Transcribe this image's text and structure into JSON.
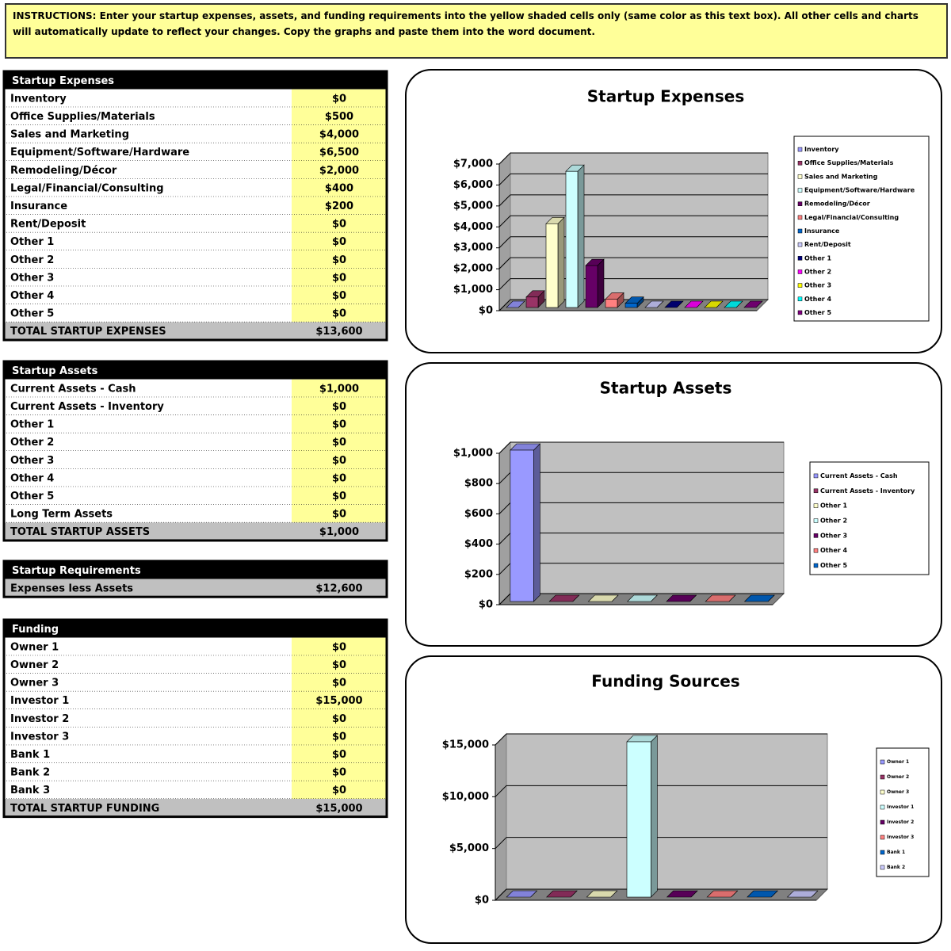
{
  "instructions": "INSTRUCTIONS: Enter your startup expenses, assets, and funding requirements into the yellow shaded cells only (same color as this text box). All other cells and charts will automatically update to reflect your changes. Copy the graphs and paste them into the word document.",
  "tables": [
    {
      "title": "Startup Expenses",
      "rows": [
        [
          "Inventory",
          "$0"
        ],
        [
          "Office Supplies/Materials",
          "$500"
        ],
        [
          "Sales and Marketing",
          "$4,000"
        ],
        [
          "Equipment/Software/Hardware",
          "$6,500"
        ],
        [
          "Remodeling/Décor",
          "$2,000"
        ],
        [
          "Legal/Financial/Consulting",
          "$400"
        ],
        [
          "Insurance",
          "$200"
        ],
        [
          "Rent/Deposit",
          "$0"
        ],
        [
          "Other 1",
          "$0"
        ],
        [
          "Other 2",
          "$0"
        ],
        [
          "Other 3",
          "$0"
        ],
        [
          "Other 4",
          "$0"
        ],
        [
          "Other 5",
          "$0"
        ]
      ],
      "total": [
        "TOTAL STARTUP EXPENSES",
        "$13,600"
      ]
    },
    {
      "title": "Startup Assets",
      "rows": [
        [
          "Current Assets - Cash",
          "$1,000"
        ],
        [
          "Current Assets - Inventory",
          "$0"
        ],
        [
          "Other 1",
          "$0"
        ],
        [
          "Other 2",
          "$0"
        ],
        [
          "Other 3",
          "$0"
        ],
        [
          "Other 4",
          "$0"
        ],
        [
          "Other 5",
          "$0"
        ],
        [
          "Long Term Assets",
          "$0"
        ]
      ],
      "total": [
        "TOTAL STARTUP ASSETS",
        "$1,000"
      ]
    },
    {
      "title": "Startup Requirements",
      "rows": [],
      "total": [
        "Expenses less Assets",
        "$12,600"
      ]
    },
    {
      "title": "Funding",
      "rows": [
        [
          "Owner 1",
          "$0"
        ],
        [
          "Owner 2",
          "$0"
        ],
        [
          "Owner 3",
          "$0"
        ],
        [
          "Investor 1",
          "$15,000"
        ],
        [
          "Investor 2",
          "$0"
        ],
        [
          "Investor 3",
          "$0"
        ],
        [
          "Bank 1",
          "$0"
        ],
        [
          "Bank 2",
          "$0"
        ],
        [
          "Bank 3",
          "$0"
        ]
      ],
      "total": [
        "TOTAL STARTUP FUNDING",
        "$15,000"
      ]
    }
  ],
  "charts": [
    {
      "type": "bar",
      "title": "Startup Expenses",
      "categories": [
        "Inventory",
        "Office Supplies/Materials",
        "Sales and Marketing",
        "Equipment/Software/Hardware",
        "Remodeling/Décor",
        "Legal/Financial/Consulting",
        "Insurance",
        "Rent/Deposit",
        "Other 1",
        "Other 2",
        "Other 3",
        "Other 4",
        "Other 5"
      ],
      "values": [
        0,
        500,
        4000,
        6500,
        2000,
        400,
        200,
        0,
        0,
        0,
        0,
        0,
        0
      ],
      "colors": [
        "#9999FF",
        "#993366",
        "#FFFFCC",
        "#CCFFFF",
        "#660066",
        "#FF8080",
        "#0066CC",
        "#CCCCFF",
        "#000080",
        "#FF00FF",
        "#FFFF00",
        "#00FFFF",
        "#800080"
      ],
      "ylim": [
        0,
        7000
      ],
      "yticks": [
        {
          "value": 0,
          "label": "$0"
        },
        {
          "value": 1000,
          "label": "$1,000"
        },
        {
          "value": 2000,
          "label": "$2,000"
        },
        {
          "value": 3000,
          "label": "$3,000"
        },
        {
          "value": 4000,
          "label": "$4,000"
        },
        {
          "value": 5000,
          "label": "$5,000"
        },
        {
          "value": 6000,
          "label": "$6,000"
        },
        {
          "value": 7000,
          "label": "$7,000"
        }
      ],
      "grid": true
    },
    {
      "type": "bar",
      "title": "Startup Assets",
      "categories": [
        "Current Assets - Cash",
        "Current Assets - Inventory",
        "Other 1",
        "Other 2",
        "Other 3",
        "Other 4",
        "Other 5"
      ],
      "values": [
        1000,
        0,
        0,
        0,
        0,
        0,
        0
      ],
      "colors": [
        "#9999FF",
        "#993366",
        "#FFFFCC",
        "#CCFFFF",
        "#660066",
        "#FF8080",
        "#0066CC"
      ],
      "ylim": [
        0,
        1000
      ],
      "yticks": [
        {
          "value": 0,
          "label": "$0"
        },
        {
          "value": 200,
          "label": "$200"
        },
        {
          "value": 400,
          "label": "$400"
        },
        {
          "value": 600,
          "label": "$600"
        },
        {
          "value": 800,
          "label": "$800"
        },
        {
          "value": 1000,
          "label": "$1,000"
        }
      ],
      "grid": true
    },
    {
      "type": "bar",
      "title": "Funding Sources",
      "categories": [
        "Owner 1",
        "Owner 2",
        "Owner 3",
        "Investor 1",
        "Investor 2",
        "Investor 3",
        "Bank 1",
        "Bank 2"
      ],
      "values": [
        0,
        0,
        0,
        15000,
        0,
        0,
        0,
        0
      ],
      "colors": [
        "#9999FF",
        "#993366",
        "#FFFFCC",
        "#CCFFFF",
        "#660066",
        "#FF8080",
        "#0066CC",
        "#CCCCFF"
      ],
      "ylim": [
        0,
        15000
      ],
      "yticks": [
        {
          "value": 0,
          "label": "$0"
        },
        {
          "value": 5000,
          "label": "$5,000"
        },
        {
          "value": 10000,
          "label": "$10,000"
        },
        {
          "value": 15000,
          "label": "$15,000"
        }
      ],
      "grid": true
    }
  ]
}
